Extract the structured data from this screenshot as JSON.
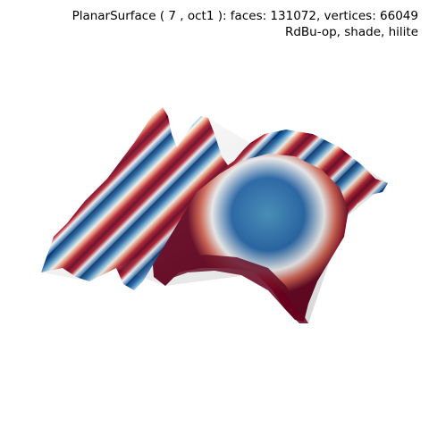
{
  "figure": {
    "title_line1": "PlanarSurface ( 7 , oct1 ):  faces: 131072,  vertices: 66049",
    "title_line2": "RdBu-op, shade, hilite",
    "colormap": "RdBu",
    "colors": {
      "red_dark": "#67001f",
      "red": "#b2182b",
      "red_light": "#d6604d",
      "white": "#f7f7f7",
      "blue_light": "#4393c3",
      "blue": "#2166ac",
      "blue_dark": "#053061"
    }
  }
}
